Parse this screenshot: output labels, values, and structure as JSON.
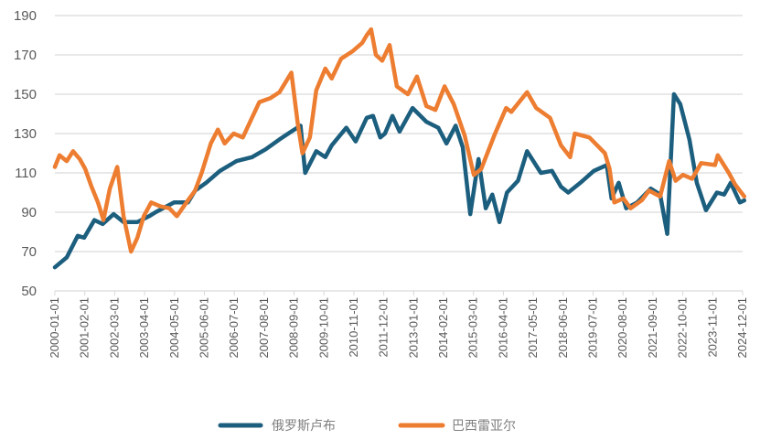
{
  "chart_data": {
    "type": "line",
    "title": "",
    "xlabel": "",
    "ylabel": "",
    "ylim": [
      50,
      190
    ],
    "yticks": [
      50,
      70,
      90,
      110,
      130,
      150,
      170,
      190
    ],
    "xlim": [
      2000.0,
      2024.92
    ],
    "xtick_labels": [
      "2000-01-01",
      "2001-02-01",
      "2002-03-01",
      "2003-04-01",
      "2004-05-01",
      "2005-06-01",
      "2006-07-01",
      "2007-08-01",
      "2008-09-01",
      "2009-10-01",
      "2010-11-01",
      "2011-12-01",
      "2013-01-01",
      "2014-02-01",
      "2015-03-01",
      "2016-04-01",
      "2017-05-01",
      "2018-06-01",
      "2019-07-01",
      "2020-08-01",
      "2021-09-01",
      "2022-10-01",
      "2023-11-01",
      "2024-12-01"
    ],
    "grid": "horizontal",
    "legend_position": "bottom",
    "series": [
      {
        "name": "俄罗斯卢布",
        "color": "#1c5e7e",
        "x": [
          2000.0,
          2000.43,
          2000.83,
          2001.06,
          2001.43,
          2001.73,
          2002.13,
          2002.49,
          2002.99,
          2003.42,
          2003.65,
          2004.32,
          2004.82,
          2005.08,
          2005.48,
          2005.98,
          2006.58,
          2007.14,
          2007.64,
          2008.14,
          2008.57,
          2008.9,
          2009.07,
          2009.47,
          2009.8,
          2010.03,
          2010.56,
          2010.9,
          2011.3,
          2011.53,
          2011.79,
          2011.96,
          2012.23,
          2012.49,
          2012.96,
          2013.46,
          2013.89,
          2014.19,
          2014.52,
          2014.78,
          2015.05,
          2015.35,
          2015.61,
          2015.85,
          2016.11,
          2016.38,
          2016.78,
          2017.11,
          2017.61,
          2018.01,
          2018.34,
          2018.6,
          2019.04,
          2019.53,
          2020.0,
          2020.17,
          2020.43,
          2020.7,
          2021.1,
          2021.59,
          2021.93,
          2022.19,
          2022.43,
          2022.66,
          2022.99,
          2023.26,
          2023.59,
          2023.99,
          2024.25,
          2024.49,
          2024.82,
          2024.98
        ],
        "values": [
          62,
          67,
          78,
          77,
          86,
          84,
          89,
          85,
          85,
          88,
          90,
          95,
          95,
          101,
          105,
          111,
          116,
          118,
          122,
          127,
          131,
          134,
          110,
          121,
          118,
          124,
          133,
          126,
          138,
          139,
          128,
          130,
          139,
          131,
          143,
          136,
          133,
          125,
          134,
          123,
          89,
          117,
          92,
          99,
          85,
          100,
          106,
          121,
          110,
          111,
          103,
          100,
          105,
          111,
          114,
          97,
          105,
          92,
          95,
          102,
          99,
          79,
          150,
          145,
          127,
          105,
          91,
          100,
          99,
          105,
          95,
          96
        ]
      },
      {
        "name": "巴西雷亚尔",
        "color": "#ed7d31",
        "x": [
          2000.0,
          2000.17,
          2000.43,
          2000.66,
          2000.9,
          2001.1,
          2001.33,
          2001.56,
          2001.76,
          2001.99,
          2002.26,
          2002.49,
          2002.76,
          2002.99,
          2003.22,
          2003.49,
          2003.82,
          2004.15,
          2004.42,
          2004.82,
          2005.08,
          2005.32,
          2005.65,
          2005.91,
          2006.15,
          2006.48,
          2006.81,
          2007.14,
          2007.41,
          2007.81,
          2008.14,
          2008.57,
          2008.8,
          2008.97,
          2009.24,
          2009.47,
          2009.8,
          2010.03,
          2010.37,
          2010.8,
          2011.13,
          2011.3,
          2011.46,
          2011.63,
          2011.86,
          2012.13,
          2012.39,
          2012.79,
          2013.12,
          2013.46,
          2013.79,
          2014.12,
          2014.45,
          2014.85,
          2015.18,
          2015.45,
          2015.95,
          2016.35,
          2016.54,
          2017.11,
          2017.44,
          2017.94,
          2018.34,
          2018.67,
          2018.84,
          2019.37,
          2019.93,
          2020.1,
          2020.27,
          2020.6,
          2020.86,
          2021.26,
          2021.53,
          2021.93,
          2022.26,
          2022.49,
          2022.76,
          2023.09,
          2023.42,
          2023.92,
          2024.02,
          2024.42,
          2024.65,
          2024.98
        ],
        "values": [
          113,
          119,
          116,
          121,
          117,
          112,
          103,
          95,
          86,
          102,
          113,
          88,
          70,
          77,
          88,
          95,
          93,
          92,
          88,
          96,
          101,
          110,
          125,
          132,
          125,
          130,
          128,
          138,
          146,
          148,
          151,
          161,
          135,
          120,
          128,
          152,
          163,
          158,
          168,
          172,
          176,
          180,
          183,
          170,
          167,
          175,
          154,
          150,
          159,
          144,
          142,
          154,
          145,
          129,
          109,
          112,
          130,
          143,
          141,
          151,
          143,
          138,
          124,
          118,
          130,
          128,
          120,
          112,
          95,
          97,
          92,
          96,
          101,
          98,
          116,
          106,
          109,
          107,
          115,
          114,
          119,
          110,
          104,
          98
        ]
      }
    ]
  }
}
